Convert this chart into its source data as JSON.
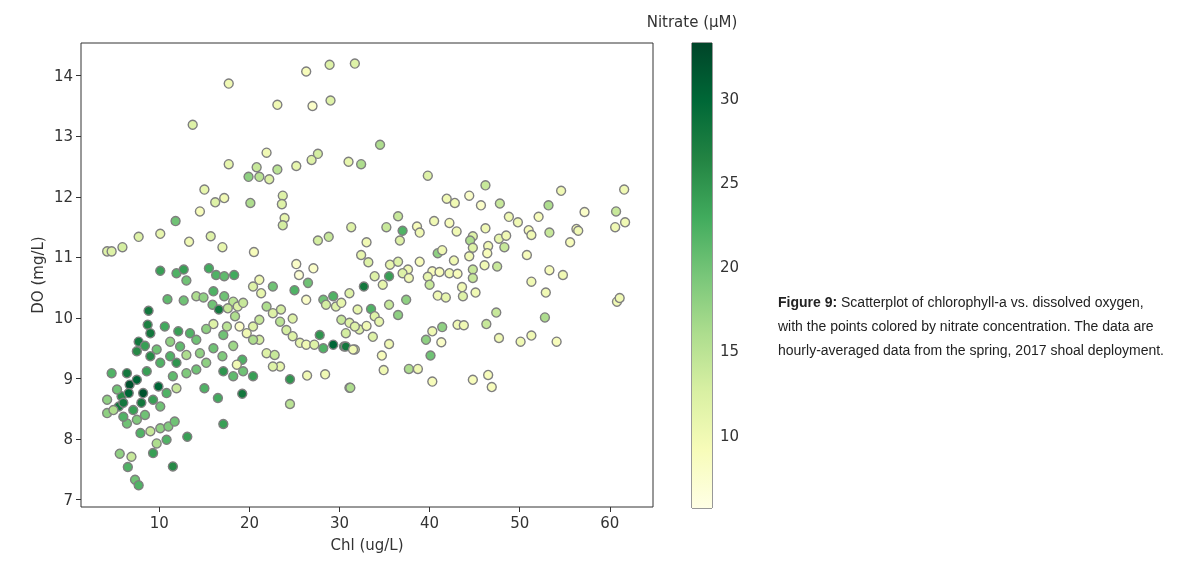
{
  "chart_data": {
    "type": "scatter",
    "xlabel": "Chl (ug/L)",
    "ylabel": "DO (mg/L)",
    "clabel": "Nitrate (µM)",
    "annotations": [
      "Figure 9: Scatterplot of chlorophyll-a vs. dissolved oxygen, with the points colored by nitrate concentration. The data are hourly-averaged data from the spring, 2017 shoal deployment."
    ],
    "xlim": [
      1.3,
      64.8
    ],
    "ylim": [
      6.88,
      14.54
    ],
    "xticks": [
      10,
      20,
      30,
      40,
      50,
      60
    ],
    "yticks": [
      7,
      8,
      9,
      10,
      11,
      12,
      13,
      14
    ],
    "clim": [
      5.7,
      33.3
    ],
    "cticks": [
      10,
      15,
      20,
      25,
      30
    ],
    "marker": "circle",
    "x": [
      4.2,
      4.7,
      5.9,
      7.7,
      10.1,
      13.3,
      11.8,
      15.7,
      17.0,
      13.7,
      17.7,
      15.0,
      14.5,
      16.2,
      17.2,
      17.7,
      19.9,
      20.8,
      20.1,
      21.9,
      21.1,
      22.2,
      23.1,
      23.7,
      23.6,
      23.9,
      23.7,
      23.1,
      25.2,
      26.3,
      27.0,
      26.9,
      27.6,
      28.9,
      29.0,
      31.0,
      31.7,
      27.6,
      28.8,
      31.3,
      20.5,
      25.2,
      25.5,
      27.1,
      26.5,
      26.3,
      25.0,
      29.3,
      28.2,
      10.1,
      11.9,
      12.7,
      13.0,
      10.9,
      12.7,
      8.8,
      8.7,
      9.0,
      10.6,
      12.1,
      14.1,
      14.9,
      15.5,
      16.3,
      17.2,
      18.3,
      16.0,
      17.2,
      18.2,
      18.7,
      17.6,
      15.9,
      16.0,
      15.2,
      17.1,
      16.6,
      13.4,
      14.1,
      7.7,
      8.4,
      7.5,
      9.7,
      11.2,
      12.3,
      13.0,
      14.5,
      16.0,
      17.0,
      18.2,
      19.2,
      18.6,
      19.3,
      17.1,
      18.2,
      20.4,
      15.0,
      16.5,
      19.2,
      17.1,
      24.5,
      24.5,
      26.4,
      28.4,
      31.1,
      19.7,
      20.4,
      21.1,
      21.9,
      22.6,
      23.4,
      24.1,
      24.8,
      25.6,
      26.3,
      27.2,
      28.2,
      29.3,
      30.5,
      31.7,
      21.1,
      20.4,
      21.3,
      22.6,
      23.5,
      24.8,
      19.3,
      18.4,
      17.5,
      18.9,
      21.1,
      21.9,
      22.8,
      23.4,
      22.6,
      20.4,
      28.5,
      29.6,
      30.2,
      31.1,
      32.0,
      30.7,
      27.8,
      32.2,
      6.4,
      6.7,
      5.8,
      7.5,
      8.6,
      9.9,
      9.3,
      8.2,
      5.5,
      4.2,
      4.2,
      5.3,
      6.4,
      7.5,
      7.1,
      6.0,
      8.4,
      10.1,
      10.8,
      11.5,
      11.9,
      10.1,
      9.0,
      11.2,
      13.0,
      14.1,
      15.2,
      11.9,
      7.9,
      9.0,
      10.1,
      11.0,
      11.7,
      9.7,
      10.8,
      9.3,
      13.1,
      11.5,
      5.6,
      6.9,
      6.5,
      7.3,
      7.7,
      4.7,
      4.9,
      6.6,
      8.0,
      6.0,
      34.5,
      32.4,
      39.8,
      46.2,
      54.6,
      61.6,
      41.9,
      44.4,
      42.8,
      45.7,
      47.8,
      53.2,
      57.2,
      60.7,
      61.7,
      60.6,
      52.1,
      48.8,
      49.8,
      51.0,
      51.3,
      53.3,
      56.3,
      56.5,
      55.6,
      35.2,
      36.5,
      37.0,
      36.7,
      38.6,
      38.9,
      40.5,
      42.2,
      43.0,
      46.2,
      47.7,
      48.5,
      48.3,
      44.8,
      44.5,
      44.8,
      46.5,
      44.4,
      44.8,
      44.8,
      46.1,
      46.4,
      47.5,
      50.8,
      33.0,
      32.4,
      33.2,
      35.6,
      36.5,
      37.6,
      38.9,
      40.9,
      41.4,
      42.7,
      40.3,
      41.1,
      42.2,
      43.1,
      39.8,
      40.0,
      40.9,
      41.8,
      43.6,
      43.7,
      45.1,
      51.3,
      53.3,
      54.8,
      52.9,
      60.8,
      61.1,
      47.4,
      46.3,
      43.1,
      43.8,
      52.8,
      51.3,
      50.1,
      54.1,
      47.7,
      41.4,
      39.6,
      40.3,
      41.3,
      40.1,
      35.5,
      34.7,
      34.9,
      37.7,
      38.7,
      40.3,
      44.8,
      46.5,
      46.9,
      31.2,
      30.7,
      32.7,
      33.5,
      35.5,
      33.9,
      34.8,
      37.0,
      37.7,
      33.9,
      34.4,
      33.0,
      33.7,
      35.5,
      36.5,
      37.4,
      31.7,
      31.5,
      30.2,
      31.1
    ],
    "values": [
      11.1,
      11.1,
      11.17,
      11.34,
      11.39,
      11.26,
      11.6,
      11.35,
      11.17,
      13.19,
      13.87,
      12.12,
      11.76,
      11.91,
      11.98,
      12.54,
      12.33,
      12.49,
      11.9,
      12.73,
      12.33,
      12.29,
      12.45,
      12.02,
      11.88,
      11.65,
      11.53,
      13.52,
      12.51,
      14.07,
      13.5,
      12.61,
      12.71,
      14.18,
      13.59,
      12.58,
      14.2,
      11.28,
      11.34,
      11.5,
      11.09,
      10.89,
      10.71,
      10.82,
      10.58,
      10.3,
      10.46,
      10.36,
      10.3,
      10.78,
      10.74,
      10.8,
      10.62,
      10.31,
      10.29,
      10.12,
      9.89,
      9.75,
      9.86,
      9.78,
      10.36,
      10.34,
      10.82,
      10.71,
      10.69,
      10.71,
      10.44,
      10.36,
      10.27,
      10.19,
      10.16,
      10.22,
      9.9,
      9.82,
      9.72,
      10.14,
      9.75,
      9.64,
      9.61,
      9.54,
      9.45,
      9.48,
      9.61,
      9.53,
      9.39,
      9.42,
      9.5,
      9.37,
      9.54,
      9.31,
      9.23,
      9.12,
      9.12,
      9.04,
      9.04,
      8.84,
      8.68,
      8.75,
      8.25,
      8.99,
      8.58,
      9.05,
      9.07,
      8.85,
      9.75,
      9.86,
      9.97,
      10.19,
      10.08,
      9.94,
      9.8,
      9.7,
      9.59,
      9.56,
      9.56,
      9.5,
      9.56,
      9.53,
      9.48,
      10.63,
      10.52,
      10.41,
      10.52,
      10.14,
      9.99,
      10.25,
      10.03,
      9.86,
      9.86,
      9.64,
      9.42,
      9.39,
      9.2,
      9.2,
      9.64,
      10.22,
      10.19,
      9.97,
      9.92,
      10.14,
      9.75,
      9.72,
      9.81,
      9.09,
      8.9,
      8.71,
      8.98,
      9.12,
      8.87,
      8.65,
      8.76,
      8.54,
      8.65,
      8.43,
      8.82,
      8.26,
      8.32,
      8.48,
      8.37,
      8.4,
      8.54,
      8.76,
      9.04,
      9.26,
      9.26,
      9.37,
      9.37,
      9.09,
      9.15,
      9.26,
      8.84,
      8.1,
      8.13,
      8.18,
      8.21,
      8.29,
      7.93,
      7.99,
      7.77,
      8.04,
      7.55,
      7.76,
      7.71,
      7.54,
      7.33,
      7.24,
      9.09,
      8.48,
      8.76,
      8.6,
      8.6,
      12.86,
      12.54,
      12.35,
      12.19,
      12.1,
      12.12,
      11.97,
      12.02,
      11.9,
      11.86,
      11.89,
      11.86,
      11.75,
      11.76,
      11.58,
      11.5,
      11.67,
      11.67,
      11.58,
      11.45,
      11.37,
      11.41,
      11.47,
      11.44,
      11.25,
      11.5,
      11.68,
      11.44,
      11.28,
      11.51,
      11.41,
      11.6,
      11.57,
      11.43,
      11.48,
      11.31,
      11.36,
      11.17,
      11.35,
      11.28,
      11.16,
      11.19,
      11.02,
      10.8,
      10.66,
      10.87,
      11.07,
      10.85,
      11.04,
      11.25,
      11.04,
      10.92,
      10.88,
      10.93,
      10.8,
      10.93,
      11.07,
      11.12,
      10.95,
      10.77,
      10.76,
      10.74,
      10.73,
      10.68,
      10.55,
      10.37,
      10.34,
      10.51,
      10.36,
      10.42,
      10.6,
      10.79,
      10.71,
      10.42,
      10.27,
      10.33,
      10.09,
      9.9,
      9.89,
      9.88,
      10.01,
      9.71,
      9.61,
      9.61,
      9.67,
      9.85,
      9.64,
      9.78,
      9.6,
      9.38,
      9.57,
      9.38,
      9.14,
      9.16,
      9.16,
      8.95,
      8.98,
      9.06,
      8.86,
      8.85,
      9.53,
      10.52,
      10.15,
      10.69,
      10.69,
      10.55,
      10.74,
      10.66,
      10.03,
      9.94,
      9.87,
      9.69,
      10.22,
      10.05,
      10.3,
      9.86,
      9.48,
      10.25,
      10.41
    ],
    "cvalues": [
      12,
      12,
      13,
      12,
      11,
      10,
      20,
      12,
      11,
      12,
      10,
      11,
      9,
      12,
      10,
      11,
      18,
      14,
      16,
      10,
      15,
      12,
      15,
      12,
      12,
      11,
      13,
      10,
      11,
      9,
      8,
      12,
      13,
      12,
      12,
      11,
      12,
      13,
      14,
      12,
      9,
      8,
      7,
      8,
      20,
      8,
      22,
      22,
      20,
      24,
      22,
      24,
      20,
      21,
      20,
      28,
      27,
      28,
      23,
      24,
      16,
      18,
      23,
      22,
      21,
      23,
      22,
      20,
      15,
      12,
      14,
      20,
      12,
      18,
      20,
      28,
      22,
      20,
      28,
      24,
      26,
      20,
      18,
      21,
      16,
      18,
      20,
      19,
      17,
      22,
      10,
      20,
      25,
      21,
      24,
      22,
      23,
      28,
      24,
      25,
      15,
      10,
      10,
      15,
      10,
      12,
      14,
      16,
      12,
      15,
      13,
      12,
      11,
      10,
      12,
      22,
      30,
      25,
      12,
      10,
      12,
      11,
      20,
      13,
      12,
      14,
      16,
      15,
      8,
      13,
      12,
      14,
      11,
      12,
      16,
      13,
      12,
      14,
      12,
      11,
      13,
      25,
      12,
      28,
      32,
      26,
      30,
      24,
      30,
      24,
      32,
      28,
      18,
      18,
      20,
      20,
      19,
      24,
      22,
      20,
      20,
      22,
      21,
      25,
      22,
      26,
      22,
      19,
      20,
      18,
      14,
      22,
      14,
      18,
      19,
      20,
      16,
      22,
      24,
      24,
      26,
      18,
      14,
      22,
      20,
      22,
      22,
      16,
      30,
      28,
      28,
      16,
      16,
      12,
      14,
      10,
      10,
      10,
      8,
      10,
      8,
      14,
      16,
      8,
      14,
      10,
      10,
      9,
      10,
      10,
      9,
      10,
      14,
      9,
      10,
      9,
      14,
      14,
      22,
      12,
      9,
      10,
      10,
      9,
      10,
      10,
      11,
      10,
      14,
      12,
      16,
      12,
      10,
      10,
      14,
      14,
      10,
      9,
      14,
      9,
      10,
      11,
      12,
      11,
      12,
      10,
      9,
      18,
      10,
      10,
      9,
      9,
      10,
      9,
      11,
      14,
      10,
      11,
      10,
      12,
      10,
      10,
      9,
      10,
      10,
      10,
      10,
      14,
      14,
      10,
      10,
      16,
      10,
      10,
      9,
      10,
      18,
      18,
      10,
      8,
      20,
      10,
      9,
      10,
      16,
      10,
      9,
      9,
      9,
      9,
      16,
      28,
      28,
      22,
      24,
      12,
      11,
      12,
      10,
      12,
      11,
      10,
      12,
      14,
      18,
      18,
      12,
      10,
      11,
      12
    ]
  }
}
